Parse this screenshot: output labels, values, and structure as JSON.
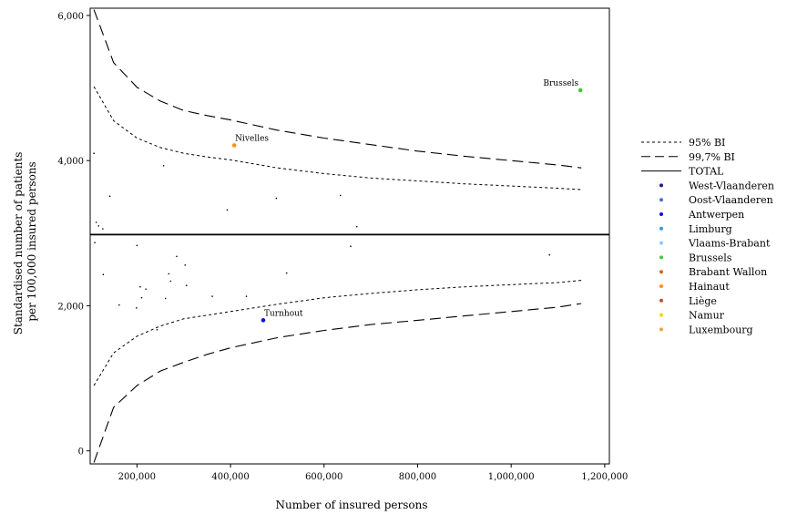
{
  "chart_data": {
    "type": "scatter",
    "title": "",
    "xlabel": "Number of insured persons",
    "ylabel_lines": [
      "Standardised number of patients",
      "per 100,000 insured persons"
    ],
    "xlim": [
      100000,
      1210000
    ],
    "ylim": [
      -180,
      6100
    ],
    "xticks": [
      200000,
      400000,
      600000,
      800000,
      1000000,
      1200000
    ],
    "xtick_labels": [
      "200,000",
      "400,000",
      "600,000",
      "800,000",
      "1,000,000",
      "1,200,000"
    ],
    "yticks": [
      0,
      2000,
      4000,
      6000
    ],
    "ytick_labels": [
      "0",
      "2,000",
      "4,000",
      "6,000"
    ],
    "grid": false,
    "legend_position": "right",
    "legend": [
      {
        "label": "95% BI",
        "kind": "line",
        "dash": "short"
      },
      {
        "label": "99,7% BI",
        "kind": "line",
        "dash": "long"
      },
      {
        "label": "TOTAL",
        "kind": "line",
        "dash": "solid"
      },
      {
        "label": "West-Vlaanderen",
        "kind": "dot",
        "color": "#1a1a8c"
      },
      {
        "label": "Oost-Vlaanderen",
        "kind": "dot",
        "color": "#4a6fd6"
      },
      {
        "label": "Antwerpen",
        "kind": "dot",
        "color": "#1010e0"
      },
      {
        "label": "Limburg",
        "kind": "dot",
        "color": "#3a9ad9"
      },
      {
        "label": "Vlaams-Brabant",
        "kind": "dot",
        "color": "#87cefa"
      },
      {
        "label": "Brussels",
        "kind": "dot",
        "color": "#3cc93c"
      },
      {
        "label": "Brabant Wallon",
        "kind": "dot",
        "color": "#d2691e"
      },
      {
        "label": "Hainaut",
        "kind": "dot",
        "color": "#ff8c1a"
      },
      {
        "label": "Liège",
        "kind": "dot",
        "color": "#b5553a"
      },
      {
        "label": "Namur",
        "kind": "dot",
        "color": "#f2d500"
      },
      {
        "label": "Luxembourg",
        "kind": "dot",
        "color": "#e8a33d"
      }
    ],
    "total": 2980,
    "ci95": {
      "x": [
        108000,
        150000,
        200000,
        250000,
        300000,
        350000,
        400000,
        500000,
        600000,
        700000,
        800000,
        900000,
        1000000,
        1100000,
        1150000
      ],
      "upper": [
        5020,
        4550,
        4310,
        4180,
        4100,
        4050,
        4010,
        3900,
        3820,
        3760,
        3720,
        3680,
        3650,
        3620,
        3600
      ],
      "lower": [
        900,
        1350,
        1580,
        1720,
        1820,
        1870,
        1920,
        2020,
        2110,
        2170,
        2220,
        2260,
        2290,
        2320,
        2350
      ]
    },
    "ci997": {
      "x": [
        108000,
        150000,
        200000,
        250000,
        300000,
        350000,
        400000,
        500000,
        600000,
        700000,
        800000,
        900000,
        1000000,
        1100000,
        1150000
      ],
      "upper": [
        6080,
        5350,
        5010,
        4820,
        4690,
        4620,
        4560,
        4420,
        4310,
        4220,
        4130,
        4060,
        4000,
        3940,
        3900
      ],
      "lower": [
        -160,
        600,
        900,
        1100,
        1220,
        1330,
        1420,
        1560,
        1660,
        1740,
        1800,
        1860,
        1920,
        1980,
        2030
      ]
    },
    "points": [
      {
        "x": 1148000,
        "y": 4970,
        "group": "Brussels",
        "label": "Brussels"
      },
      {
        "x": 408000,
        "y": 4210,
        "group": "Hainaut",
        "label": "Nivelles"
      },
      {
        "x": 470000,
        "y": 1800,
        "group": "Antwerpen",
        "label": "Turnhout"
      },
      {
        "x": 108000,
        "y": 4100
      },
      {
        "x": 257000,
        "y": 3930
      },
      {
        "x": 142000,
        "y": 3510
      },
      {
        "x": 498000,
        "y": 3480
      },
      {
        "x": 635000,
        "y": 3520
      },
      {
        "x": 393000,
        "y": 3320
      },
      {
        "x": 113000,
        "y": 3150
      },
      {
        "x": 118000,
        "y": 3100
      },
      {
        "x": 127000,
        "y": 3060
      },
      {
        "x": 670000,
        "y": 3090
      },
      {
        "x": 110000,
        "y": 2870
      },
      {
        "x": 200000,
        "y": 2830
      },
      {
        "x": 657000,
        "y": 2820
      },
      {
        "x": 1082000,
        "y": 2700
      },
      {
        "x": 285000,
        "y": 2680
      },
      {
        "x": 303000,
        "y": 2560
      },
      {
        "x": 128000,
        "y": 2430
      },
      {
        "x": 268000,
        "y": 2440
      },
      {
        "x": 520000,
        "y": 2450
      },
      {
        "x": 272000,
        "y": 2340
      },
      {
        "x": 306000,
        "y": 2280
      },
      {
        "x": 207000,
        "y": 2260
      },
      {
        "x": 219000,
        "y": 2230
      },
      {
        "x": 210000,
        "y": 2110
      },
      {
        "x": 261000,
        "y": 2100
      },
      {
        "x": 361000,
        "y": 2130
      },
      {
        "x": 434000,
        "y": 2130
      },
      {
        "x": 162000,
        "y": 2010
      },
      {
        "x": 199000,
        "y": 1970
      },
      {
        "x": 243000,
        "y": 1670
      }
    ]
  }
}
